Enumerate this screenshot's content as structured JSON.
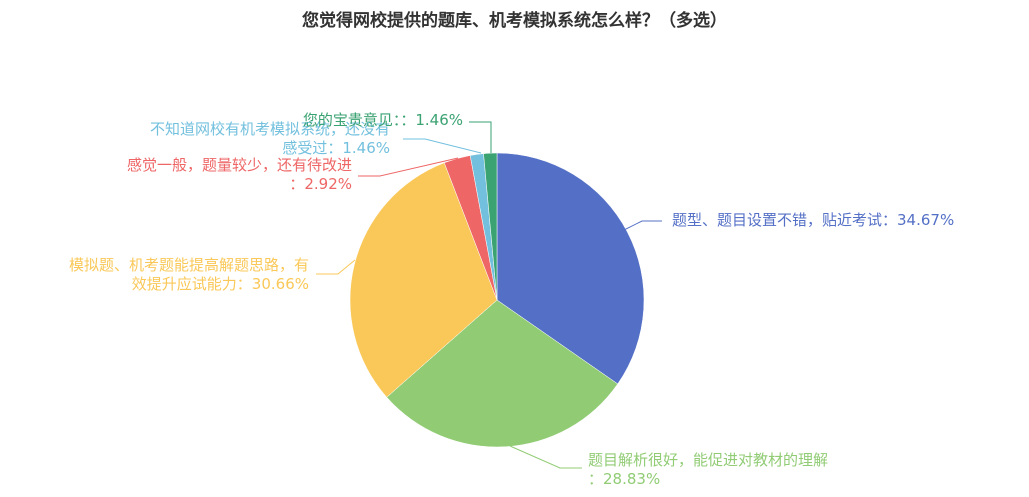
{
  "chart_data": {
    "type": "pie",
    "title": "您觉得网校提供的题库、机考模拟系统怎么样？（多选）",
    "categories": [
      "题型、题目设置不错，贴近考试",
      "题目解析很好，能促进对教材的理解",
      "模拟题、机考题能提高解题思路，有效提升应试能力",
      "感觉一般，题量较少，还有待改进",
      "不知道网校有机考模拟系统，还没有感受过",
      "您的宝贵意见："
    ],
    "values": [
      34.67,
      28.83,
      30.66,
      2.92,
      1.46,
      1.46
    ],
    "unit": "%",
    "colors": [
      "#5470c6",
      "#91cc75",
      "#fac858",
      "#ee6666",
      "#73c0de",
      "#3ba272"
    ],
    "legend": "none",
    "start_angle": "12 o'clock, clockwise"
  },
  "labels": {
    "s0": {
      "line1": "题型、题目设置不错，贴近考试：34.67%"
    },
    "s1": {
      "line1": "题目解析很好，能促进对教材的理解",
      "line2": "：28.83%"
    },
    "s2": {
      "line1": "模拟题、机考题能提高解题思路，有",
      "line2": "效提升应试能力：30.66%"
    },
    "s3": {
      "line1": "感觉一般，题量较少，还有待改进",
      "line2": "：2.92%"
    },
    "s4": {
      "line1": "不知道网校有机考模拟系统，还没有",
      "line2": "感受过：1.46%"
    },
    "s5": {
      "line1": "您的宝贵意见：：1.46%"
    }
  }
}
